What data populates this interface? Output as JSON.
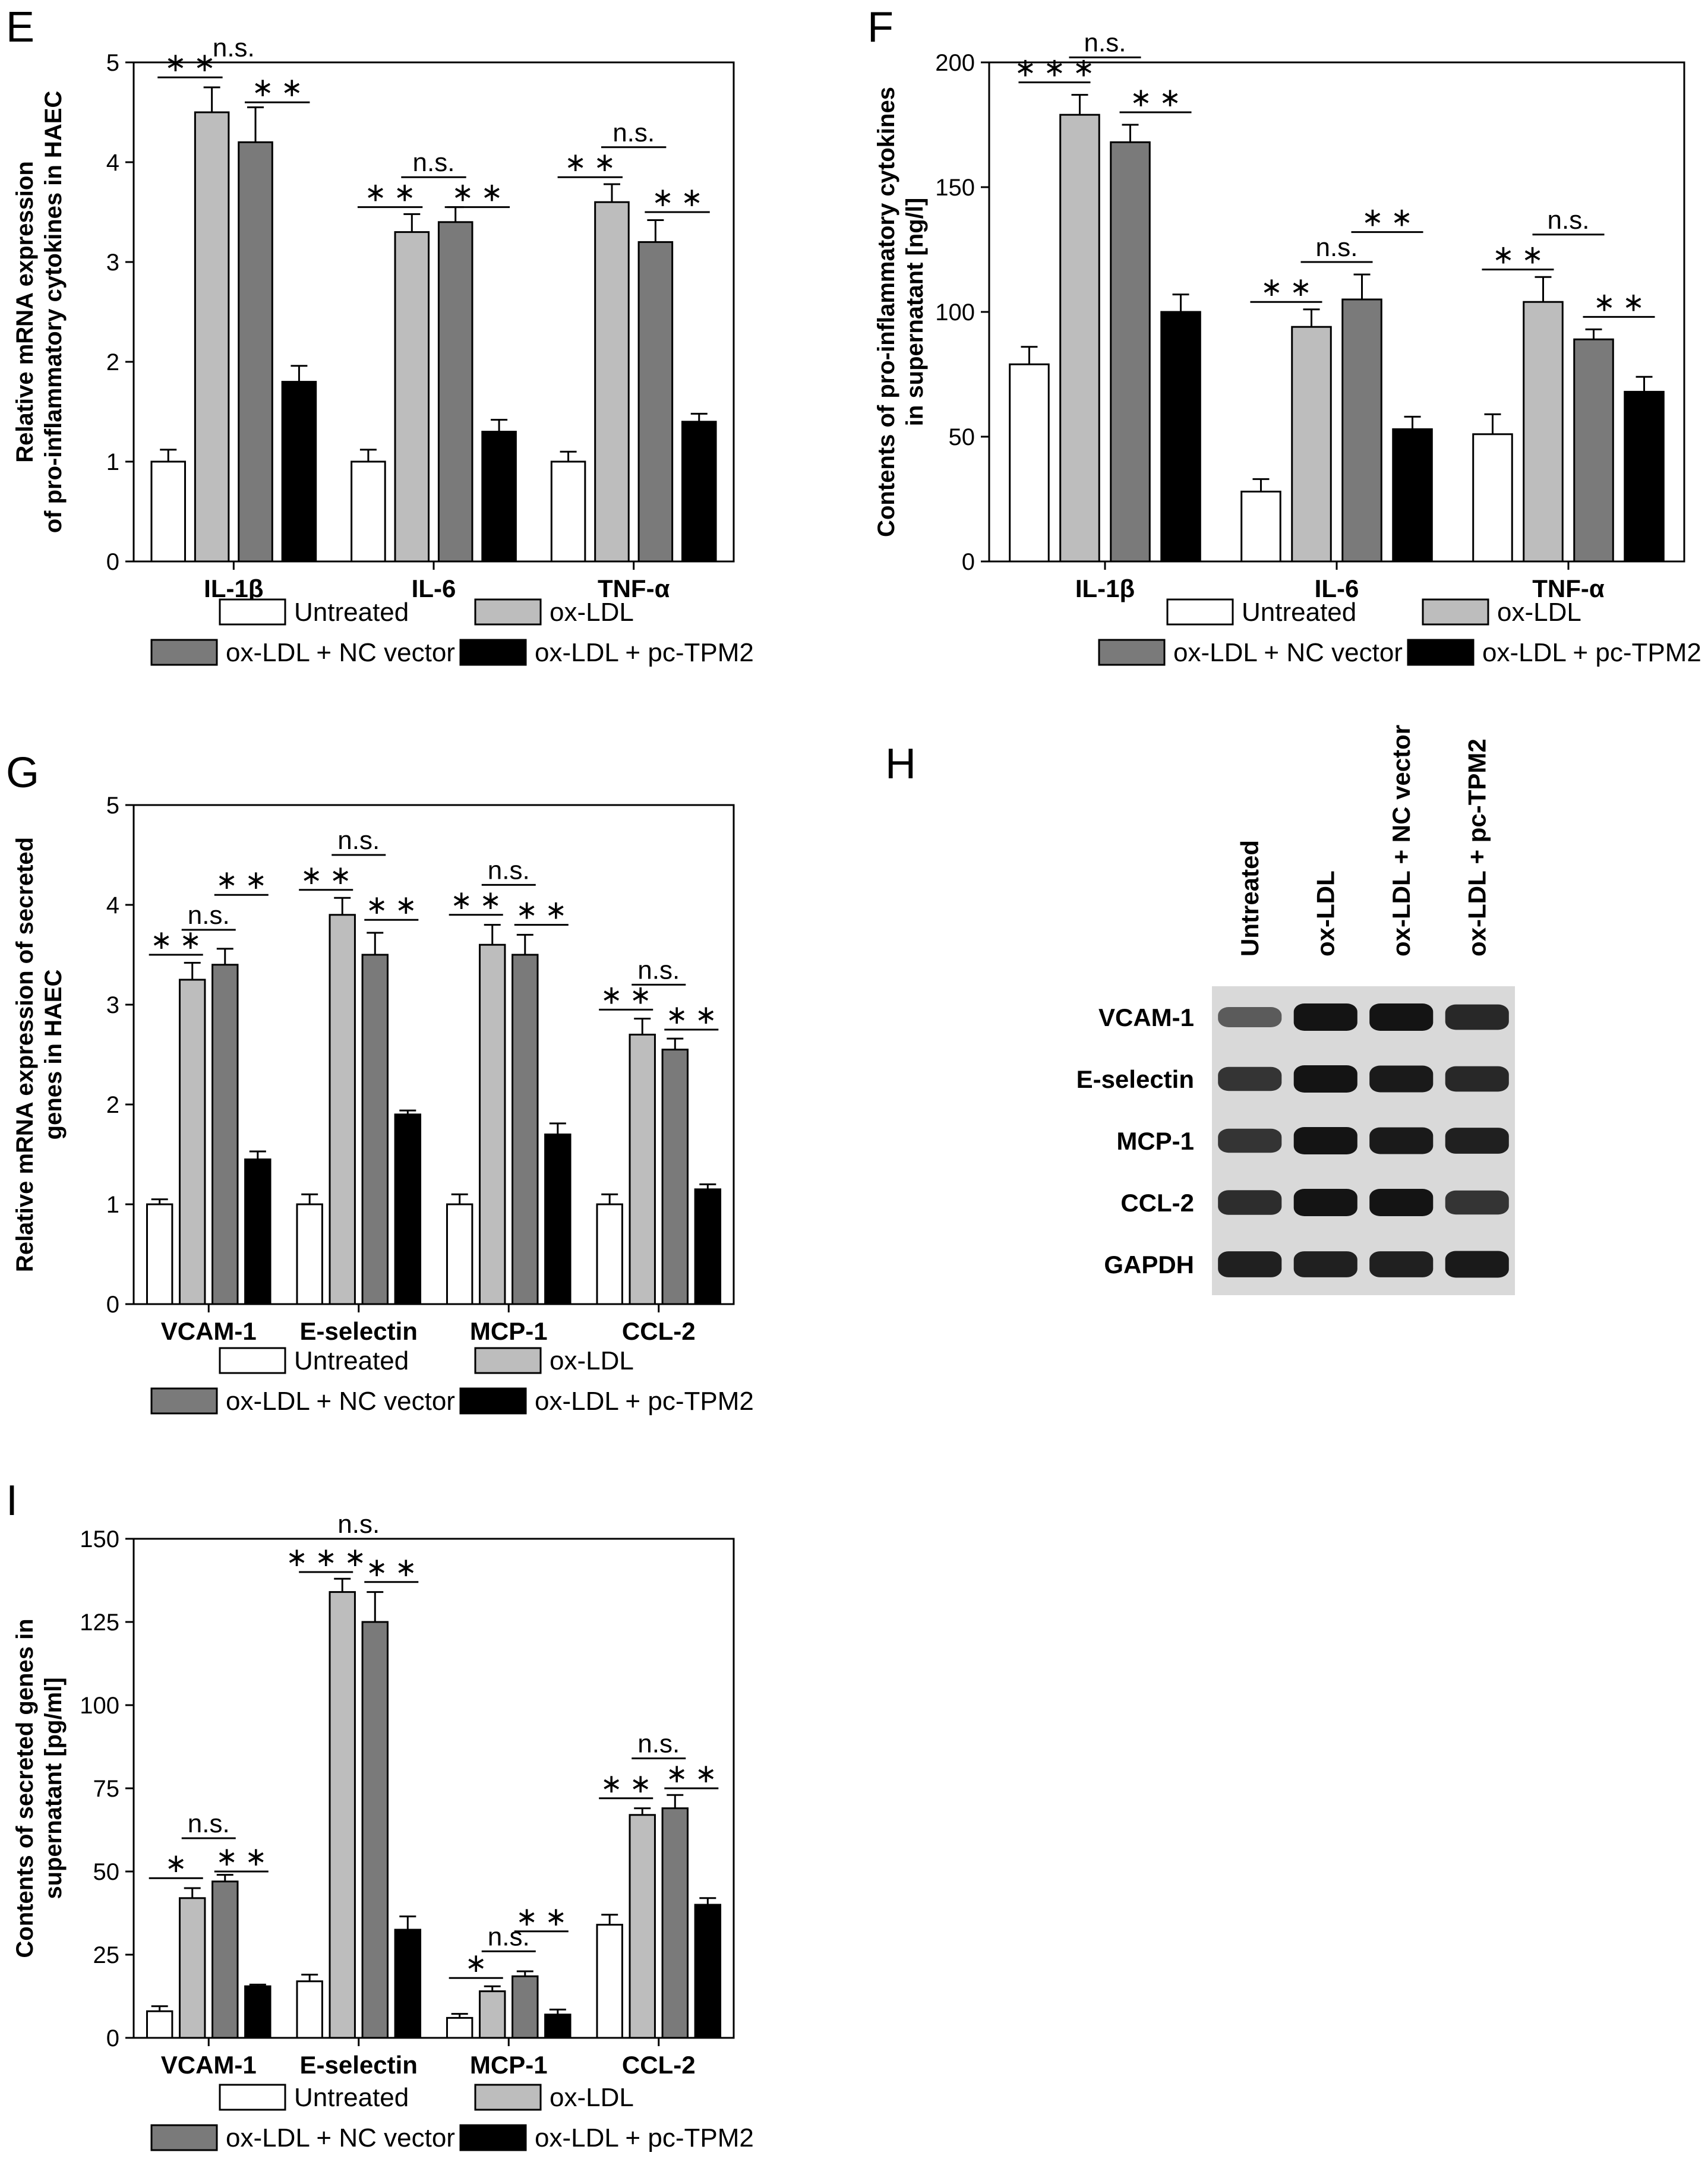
{
  "colors": {
    "untreated": "#ffffff",
    "ox_ldl": "#bdbdbd",
    "ox_ldl_nc": "#7a7a7a",
    "ox_ldl_pc": "#000000",
    "blot_bg": "#d9d9d9",
    "band": "#141414"
  },
  "legend": {
    "items": [
      {
        "label": "Untreated",
        "color": "#ffffff"
      },
      {
        "label": "ox-LDL",
        "color": "#bdbdbd"
      },
      {
        "label": "ox-LDL + NC vector",
        "color": "#7a7a7a"
      },
      {
        "label": "ox-LDL + pc-TPM2",
        "color": "#000000"
      }
    ]
  },
  "chart_data": [
    {
      "panel": "E",
      "type": "bar",
      "ylabel_lines": [
        "Relative mRNA expression",
        "of pro-inflammatory cytokines in HAEC"
      ],
      "ylim": [
        0,
        5
      ],
      "yticks": [
        0,
        1,
        2,
        3,
        4,
        5
      ],
      "categories": [
        "IL-1β",
        "IL-6",
        "TNF-α"
      ],
      "series": [
        {
          "name": "Untreated",
          "values": [
            1.0,
            1.0,
            1.0
          ],
          "errors": [
            0.12,
            0.12,
            0.1
          ]
        },
        {
          "name": "ox-LDL",
          "values": [
            4.5,
            3.3,
            3.6
          ],
          "errors": [
            0.25,
            0.18,
            0.18
          ]
        },
        {
          "name": "ox-LDL + NC vector",
          "values": [
            4.2,
            3.4,
            3.2
          ],
          "errors": [
            0.35,
            0.15,
            0.22
          ]
        },
        {
          "name": "ox-LDL + pc-TPM2",
          "values": [
            1.8,
            1.3,
            1.4
          ],
          "errors": [
            0.16,
            0.12,
            0.08
          ]
        }
      ],
      "annotations": [
        {
          "cat": 0,
          "from": 0,
          "to": 1,
          "text": "**",
          "y": 4.85
        },
        {
          "cat": 0,
          "from": 1,
          "to": 2,
          "text": "n.s.",
          "y": 5.0
        },
        {
          "cat": 0,
          "from": 2,
          "to": 3,
          "text": "**",
          "y": 4.6
        },
        {
          "cat": 1,
          "from": 0,
          "to": 1,
          "text": "**",
          "y": 3.55
        },
        {
          "cat": 1,
          "from": 1,
          "to": 2,
          "text": "n.s.",
          "y": 3.85
        },
        {
          "cat": 1,
          "from": 2,
          "to": 3,
          "text": "**",
          "y": 3.55
        },
        {
          "cat": 2,
          "from": 0,
          "to": 1,
          "text": "**",
          "y": 3.85
        },
        {
          "cat": 2,
          "from": 1,
          "to": 2,
          "text": "n.s.",
          "y": 4.15
        },
        {
          "cat": 2,
          "from": 2,
          "to": 3,
          "text": "**",
          "y": 3.5
        }
      ]
    },
    {
      "panel": "F",
      "type": "bar",
      "ylabel_lines": [
        "Contents of pro-inflammatory cytokines",
        "in supernatant [ng/l]"
      ],
      "ylim": [
        0,
        200
      ],
      "yticks": [
        0,
        50,
        100,
        150,
        200
      ],
      "categories": [
        "IL-1β",
        "IL-6",
        "TNF-α"
      ],
      "series": [
        {
          "name": "Untreated",
          "values": [
            79,
            28,
            51
          ],
          "errors": [
            7,
            5,
            8
          ]
        },
        {
          "name": "ox-LDL",
          "values": [
            179,
            94,
            104
          ],
          "errors": [
            8,
            7,
            10
          ]
        },
        {
          "name": "ox-LDL + NC vector",
          "values": [
            168,
            105,
            89
          ],
          "errors": [
            7,
            10,
            4
          ]
        },
        {
          "name": "ox-LDL + pc-TPM2",
          "values": [
            100,
            53,
            68
          ],
          "errors": [
            7,
            5,
            6
          ]
        }
      ],
      "annotations": [
        {
          "cat": 0,
          "from": 0,
          "to": 1,
          "text": "***",
          "y": 192
        },
        {
          "cat": 0,
          "from": 1,
          "to": 2,
          "text": "n.s.",
          "y": 202
        },
        {
          "cat": 0,
          "from": 2,
          "to": 3,
          "text": "**",
          "y": 180
        },
        {
          "cat": 1,
          "from": 0,
          "to": 1,
          "text": "**",
          "y": 104
        },
        {
          "cat": 1,
          "from": 1,
          "to": 2,
          "text": "n.s.",
          "y": 120
        },
        {
          "cat": 1,
          "from": 2,
          "to": 3,
          "text": "**",
          "y": 132
        },
        {
          "cat": 2,
          "from": 0,
          "to": 1,
          "text": "**",
          "y": 117
        },
        {
          "cat": 2,
          "from": 1,
          "to": 2,
          "text": "n.s.",
          "y": 131
        },
        {
          "cat": 2,
          "from": 2,
          "to": 3,
          "text": "**",
          "y": 98
        }
      ]
    },
    {
      "panel": "G",
      "type": "bar",
      "ylabel_lines": [
        "Relative mRNA expression of secreted",
        "genes in HAEC"
      ],
      "ylim": [
        0,
        5
      ],
      "yticks": [
        0,
        1,
        2,
        3,
        4,
        5
      ],
      "categories": [
        "VCAM-1",
        "E-selectin",
        "MCP-1",
        "CCL-2"
      ],
      "series": [
        {
          "name": "Untreated",
          "values": [
            1.0,
            1.0,
            1.0,
            1.0
          ],
          "errors": [
            0.05,
            0.1,
            0.1,
            0.1
          ]
        },
        {
          "name": "ox-LDL",
          "values": [
            3.25,
            3.9,
            3.6,
            2.7
          ],
          "errors": [
            0.17,
            0.17,
            0.2,
            0.16
          ]
        },
        {
          "name": "ox-LDL + NC vector",
          "values": [
            3.4,
            3.5,
            3.5,
            2.55
          ],
          "errors": [
            0.16,
            0.22,
            0.2,
            0.11
          ]
        },
        {
          "name": "ox-LDL + pc-TPM2",
          "values": [
            1.45,
            1.9,
            1.7,
            1.15
          ],
          "errors": [
            0.08,
            0.04,
            0.11,
            0.05
          ]
        }
      ],
      "annotations": [
        {
          "cat": 0,
          "from": 0,
          "to": 1,
          "text": "**",
          "y": 3.5
        },
        {
          "cat": 0,
          "from": 1,
          "to": 2,
          "text": "n.s.",
          "y": 3.75
        },
        {
          "cat": 0,
          "from": 2,
          "to": 3,
          "text": "**",
          "y": 4.1
        },
        {
          "cat": 1,
          "from": 0,
          "to": 1,
          "text": "**",
          "y": 4.15
        },
        {
          "cat": 1,
          "from": 1,
          "to": 2,
          "text": "n.s.",
          "y": 4.5
        },
        {
          "cat": 1,
          "from": 2,
          "to": 3,
          "text": "**",
          "y": 3.85
        },
        {
          "cat": 2,
          "from": 0,
          "to": 1,
          "text": "**",
          "y": 3.9
        },
        {
          "cat": 2,
          "from": 1,
          "to": 2,
          "text": "n.s.",
          "y": 4.2
        },
        {
          "cat": 2,
          "from": 2,
          "to": 3,
          "text": "**",
          "y": 3.8
        },
        {
          "cat": 3,
          "from": 0,
          "to": 1,
          "text": "**",
          "y": 2.95
        },
        {
          "cat": 3,
          "from": 1,
          "to": 2,
          "text": "n.s.",
          "y": 3.2
        },
        {
          "cat": 3,
          "from": 2,
          "to": 3,
          "text": "**",
          "y": 2.75
        }
      ]
    },
    {
      "panel": "I",
      "type": "bar",
      "ylabel_lines": [
        "Contents of secreted genes in",
        "supernatant [pg/ml]"
      ],
      "ylim": [
        0,
        150
      ],
      "yticks": [
        0,
        25,
        50,
        75,
        100,
        125,
        150
      ],
      "categories": [
        "VCAM-1",
        "E-selectin",
        "MCP-1",
        "CCL-2"
      ],
      "series": [
        {
          "name": "Untreated",
          "values": [
            8,
            17,
            6,
            34
          ],
          "errors": [
            1.5,
            2,
            1.2,
            3
          ]
        },
        {
          "name": "ox-LDL",
          "values": [
            42,
            134,
            14,
            67
          ],
          "errors": [
            3,
            4,
            1.5,
            2
          ]
        },
        {
          "name": "ox-LDL + NC vector",
          "values": [
            47,
            125,
            18.5,
            69
          ],
          "errors": [
            2,
            9,
            1.5,
            4
          ]
        },
        {
          "name": "ox-LDL + pc-TPM2",
          "values": [
            15.5,
            32.5,
            7,
            40
          ],
          "errors": [
            0.5,
            4,
            1.5,
            2
          ]
        }
      ],
      "annotations": [
        {
          "cat": 0,
          "from": 0,
          "to": 1,
          "text": "*",
          "y": 48
        },
        {
          "cat": 0,
          "from": 1,
          "to": 2,
          "text": "n.s.",
          "y": 60
        },
        {
          "cat": 0,
          "from": 2,
          "to": 3,
          "text": "**",
          "y": 50
        },
        {
          "cat": 1,
          "from": 0,
          "to": 1,
          "text": "***",
          "y": 140
        },
        {
          "cat": 1,
          "from": 1,
          "to": 2,
          "text": "n.s.",
          "y": 150
        },
        {
          "cat": 1,
          "from": 2,
          "to": 3,
          "text": "**",
          "y": 137
        },
        {
          "cat": 2,
          "from": 0,
          "to": 1,
          "text": "*",
          "y": 18
        },
        {
          "cat": 2,
          "from": 1,
          "to": 2,
          "text": "n.s.",
          "y": 26
        },
        {
          "cat": 2,
          "from": 2,
          "to": 3,
          "text": "**",
          "y": 32
        },
        {
          "cat": 3,
          "from": 0,
          "to": 1,
          "text": "**",
          "y": 72
        },
        {
          "cat": 3,
          "from": 1,
          "to": 2,
          "text": "n.s.",
          "y": 84
        },
        {
          "cat": 3,
          "from": 2,
          "to": 3,
          "text": "**",
          "y": 75
        }
      ]
    }
  ],
  "blot": {
    "panel": "H",
    "lanes": [
      "Untreated",
      "ox-LDL",
      "ox-LDL + NC vector",
      "ox-LDL + pc-TPM2"
    ],
    "rows": [
      {
        "label": "VCAM-1",
        "intensities": [
          0.45,
          1.0,
          1.0,
          0.85
        ]
      },
      {
        "label": "E-selectin",
        "intensities": [
          0.75,
          1.0,
          0.95,
          0.85
        ]
      },
      {
        "label": "MCP-1",
        "intensities": [
          0.75,
          1.0,
          0.95,
          0.9
        ]
      },
      {
        "label": "CCL-2",
        "intensities": [
          0.8,
          1.0,
          1.0,
          0.75
        ]
      },
      {
        "label": "GAPDH",
        "intensities": [
          0.9,
          0.9,
          0.9,
          0.95
        ]
      }
    ]
  }
}
